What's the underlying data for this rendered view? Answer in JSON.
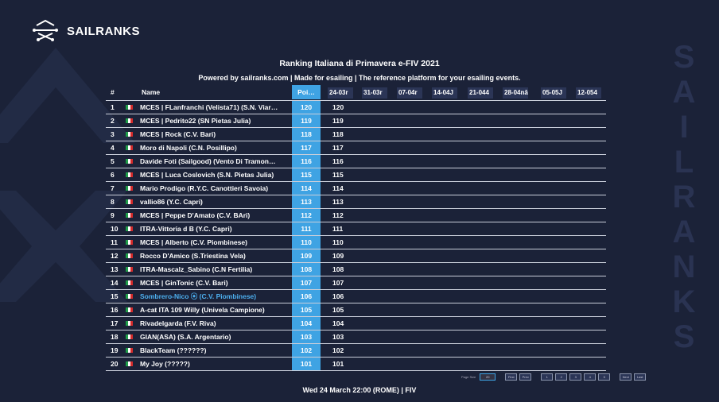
{
  "brand": {
    "name": "SAILRANKS"
  },
  "watermark": [
    "S",
    "A",
    "I",
    "L",
    "R",
    "A",
    "N",
    "K",
    "S"
  ],
  "title": "Ranking Italiana di Primavera e-FIV 2021",
  "subtitle": "Powered by sailranks.com | Made for esailing | The reference platform for your esailing events.",
  "table": {
    "headers": {
      "rank": "#",
      "name": "Name",
      "points": "Poi…"
    },
    "dates": [
      "24-03r",
      "31-03r",
      "07-04r",
      "14-04J",
      "21-044",
      "28-04nā",
      "05-05J",
      "12-054"
    ],
    "rows": [
      {
        "rank": "1",
        "name": "MCES | FLanfranchi (Velista71) (S.N. Viar…",
        "points": "120",
        "score": "120"
      },
      {
        "rank": "2",
        "name": "MCES | Pedrito22 (SN Pietas Julia)",
        "points": "119",
        "score": "119"
      },
      {
        "rank": "3",
        "name": "MCES | Rock (C.V. Bari)",
        "points": "118",
        "score": "118"
      },
      {
        "rank": "4",
        "name": "Moro di Napoli (C.N. Posillipo)",
        "points": "117",
        "score": "117"
      },
      {
        "rank": "5",
        "name": "Davide Foti (Sailgood) (Vento Di Tramon…",
        "points": "116",
        "score": "116"
      },
      {
        "rank": "6",
        "name": "MCES | Luca Coslovich (S.N. Pietas Julia)",
        "points": "115",
        "score": "115"
      },
      {
        "rank": "7",
        "name": "Mario Prodigo (R.Y.C. Canottieri Savoia)",
        "points": "114",
        "score": "114"
      },
      {
        "rank": "8",
        "name": "vallio86 (Y.C. Capri)",
        "points": "113",
        "score": "113"
      },
      {
        "rank": "9",
        "name": "MCES | Peppe D'Amato (C.V. BAri)",
        "points": "112",
        "score": "112"
      },
      {
        "rank": "10",
        "name": "ITRA-Vittoria d B (Y.C. Capri)",
        "points": "111",
        "score": "111"
      },
      {
        "rank": "11",
        "name": "MCES | Alberto (C.V. Piombinese)",
        "points": "110",
        "score": "110"
      },
      {
        "rank": "12",
        "name": "Rocco D'Amico (S.Triestina Vela)",
        "points": "109",
        "score": "109"
      },
      {
        "rank": "13",
        "name": "ITRA-Mascalz_Sabino (C.N Fertilia)",
        "points": "108",
        "score": "108"
      },
      {
        "rank": "14",
        "name": "MCES | GinTonic (C.V. Bari)",
        "points": "107",
        "score": "107"
      },
      {
        "rank": "15",
        "name": "Sombrero-Nico ⦿ (C.V. Piombinese)",
        "points": "106",
        "score": "106",
        "highlight": true
      },
      {
        "rank": "16",
        "name": "A-cat ITA 109 Willy (Univela Campione)",
        "points": "105",
        "score": "105"
      },
      {
        "rank": "17",
        "name": "Rivadelgarda (F.V. Riva)",
        "points": "104",
        "score": "104"
      },
      {
        "rank": "18",
        "name": "GIAN(ASA) (S.A. Argentario)",
        "points": "103",
        "score": "103"
      },
      {
        "rank": "19",
        "name": "BlackTeam (??????)",
        "points": "102",
        "score": "102"
      },
      {
        "rank": "20",
        "name": "My Joy (?????)",
        "points": "101",
        "score": "101"
      }
    ]
  },
  "pager": {
    "page_size_label": "Page Size",
    "page_size": "20",
    "first": "First",
    "prev": "Prev",
    "pages": [
      "1",
      "2",
      "3",
      "4",
      "5"
    ],
    "next": "Next",
    "last": "Last"
  },
  "footer": "Wed 24 March 22:00 (ROME) | FIV",
  "colors": {
    "background": "#1b2238",
    "accent": "#3fa3e3",
    "highlight_text": "#4db0f0",
    "flag_green": "#1f9d4a",
    "flag_white": "#ffffff",
    "flag_red": "#d62b2b"
  }
}
